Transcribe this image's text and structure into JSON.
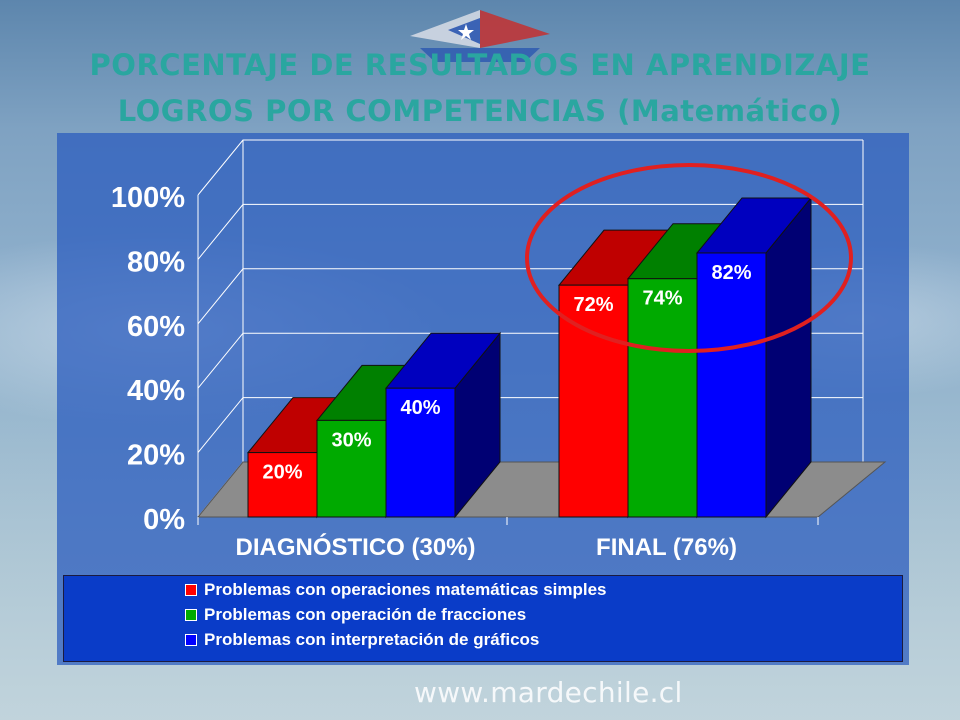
{
  "slide": {
    "title_line1": "PORCENTAJE DE RESULTADOS EN APRENDIZAJE",
    "title_line2": "LOGROS POR COMPETENCIAS (Matemático)",
    "footer": "www.mardechile.cl",
    "logo": "boat-flag-logo"
  },
  "colors": {
    "title": "#2aa6a0",
    "panel": "#2f5fbf",
    "legend_bg": "#0a3cc8",
    "highlight_ellipse": "#e02020"
  },
  "chart_data": {
    "type": "bar",
    "style": "3d-clustered",
    "categories": [
      "DIAGNÓSTICO (30%)",
      "FINAL (76%)"
    ],
    "series": [
      {
        "name": "Problemas con operaciones matemáticas simples",
        "color": "#ff0000",
        "values": [
          20,
          72
        ],
        "labels": [
          "20%",
          "72%"
        ]
      },
      {
        "name": "Problemas con operación de fracciones",
        "color": "#00aa00",
        "values": [
          30,
          74
        ],
        "labels": [
          "30%",
          "74%"
        ]
      },
      {
        "name": "Problemas con interpretación de gráficos",
        "color": "#0000ff",
        "values": [
          40,
          82
        ],
        "labels": [
          "40%",
          "82%"
        ]
      }
    ],
    "y_ticks": [
      "0%",
      "20%",
      "40%",
      "60%",
      "80%",
      "100%"
    ],
    "ylim": [
      0,
      100
    ],
    "grid": true,
    "legend_position": "bottom",
    "annotation": "red ellipse around FINAL group"
  }
}
